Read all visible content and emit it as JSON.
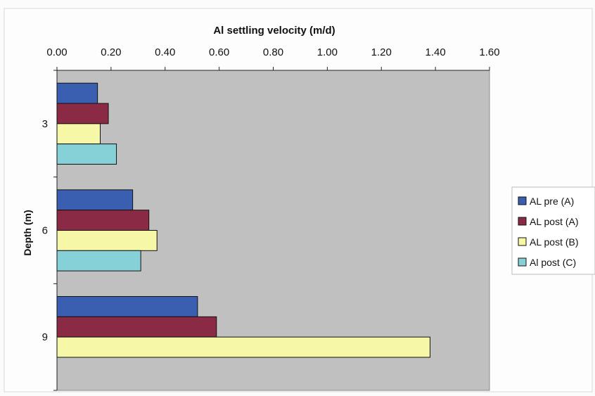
{
  "chart_data": {
    "type": "bar",
    "orientation": "horizontal",
    "title": "Al settling velocity (m/d)",
    "xlabel": "Al settling velocity (m/d)",
    "ylabel": "Depth (m)",
    "x_axis_position": "top",
    "xlim": [
      0,
      1.6
    ],
    "x_ticks": [
      "0.00",
      "0.20",
      "0.40",
      "0.60",
      "0.80",
      "1.00",
      "1.20",
      "1.40",
      "1.60"
    ],
    "categories": [
      "3",
      "6",
      "9"
    ],
    "grid": false,
    "legend_position": "right",
    "series": [
      {
        "name": "AL pre (A)",
        "color": "#3a5fb0",
        "values": [
          0.15,
          0.28,
          0.52
        ]
      },
      {
        "name": "AL post (A)",
        "color": "#8b2a45",
        "values": [
          0.19,
          0.34,
          0.59
        ]
      },
      {
        "name": "AL post (B)",
        "color": "#f7f7a8",
        "values": [
          0.16,
          0.37,
          1.38
        ]
      },
      {
        "name": "Al post (C)",
        "color": "#86d0d8",
        "values": [
          0.22,
          0.31,
          null
        ]
      }
    ],
    "plot_background": "#c0c0c0"
  }
}
